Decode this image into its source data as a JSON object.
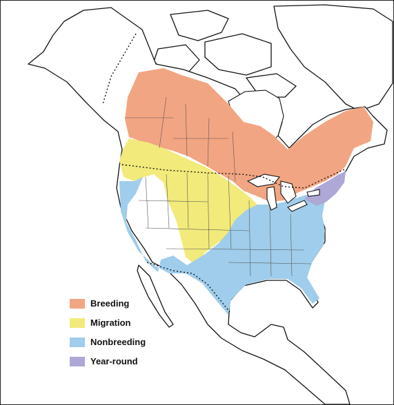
{
  "legend": [
    {
      "label": "Breeding",
      "color": "#f2a582"
    },
    {
      "label": "Migration",
      "color": "#f2ea7a"
    },
    {
      "label": "Nonbreeding",
      "color": "#9fcdeb"
    },
    {
      "label": "Year-round",
      "color": "#ada8d6"
    }
  ]
}
